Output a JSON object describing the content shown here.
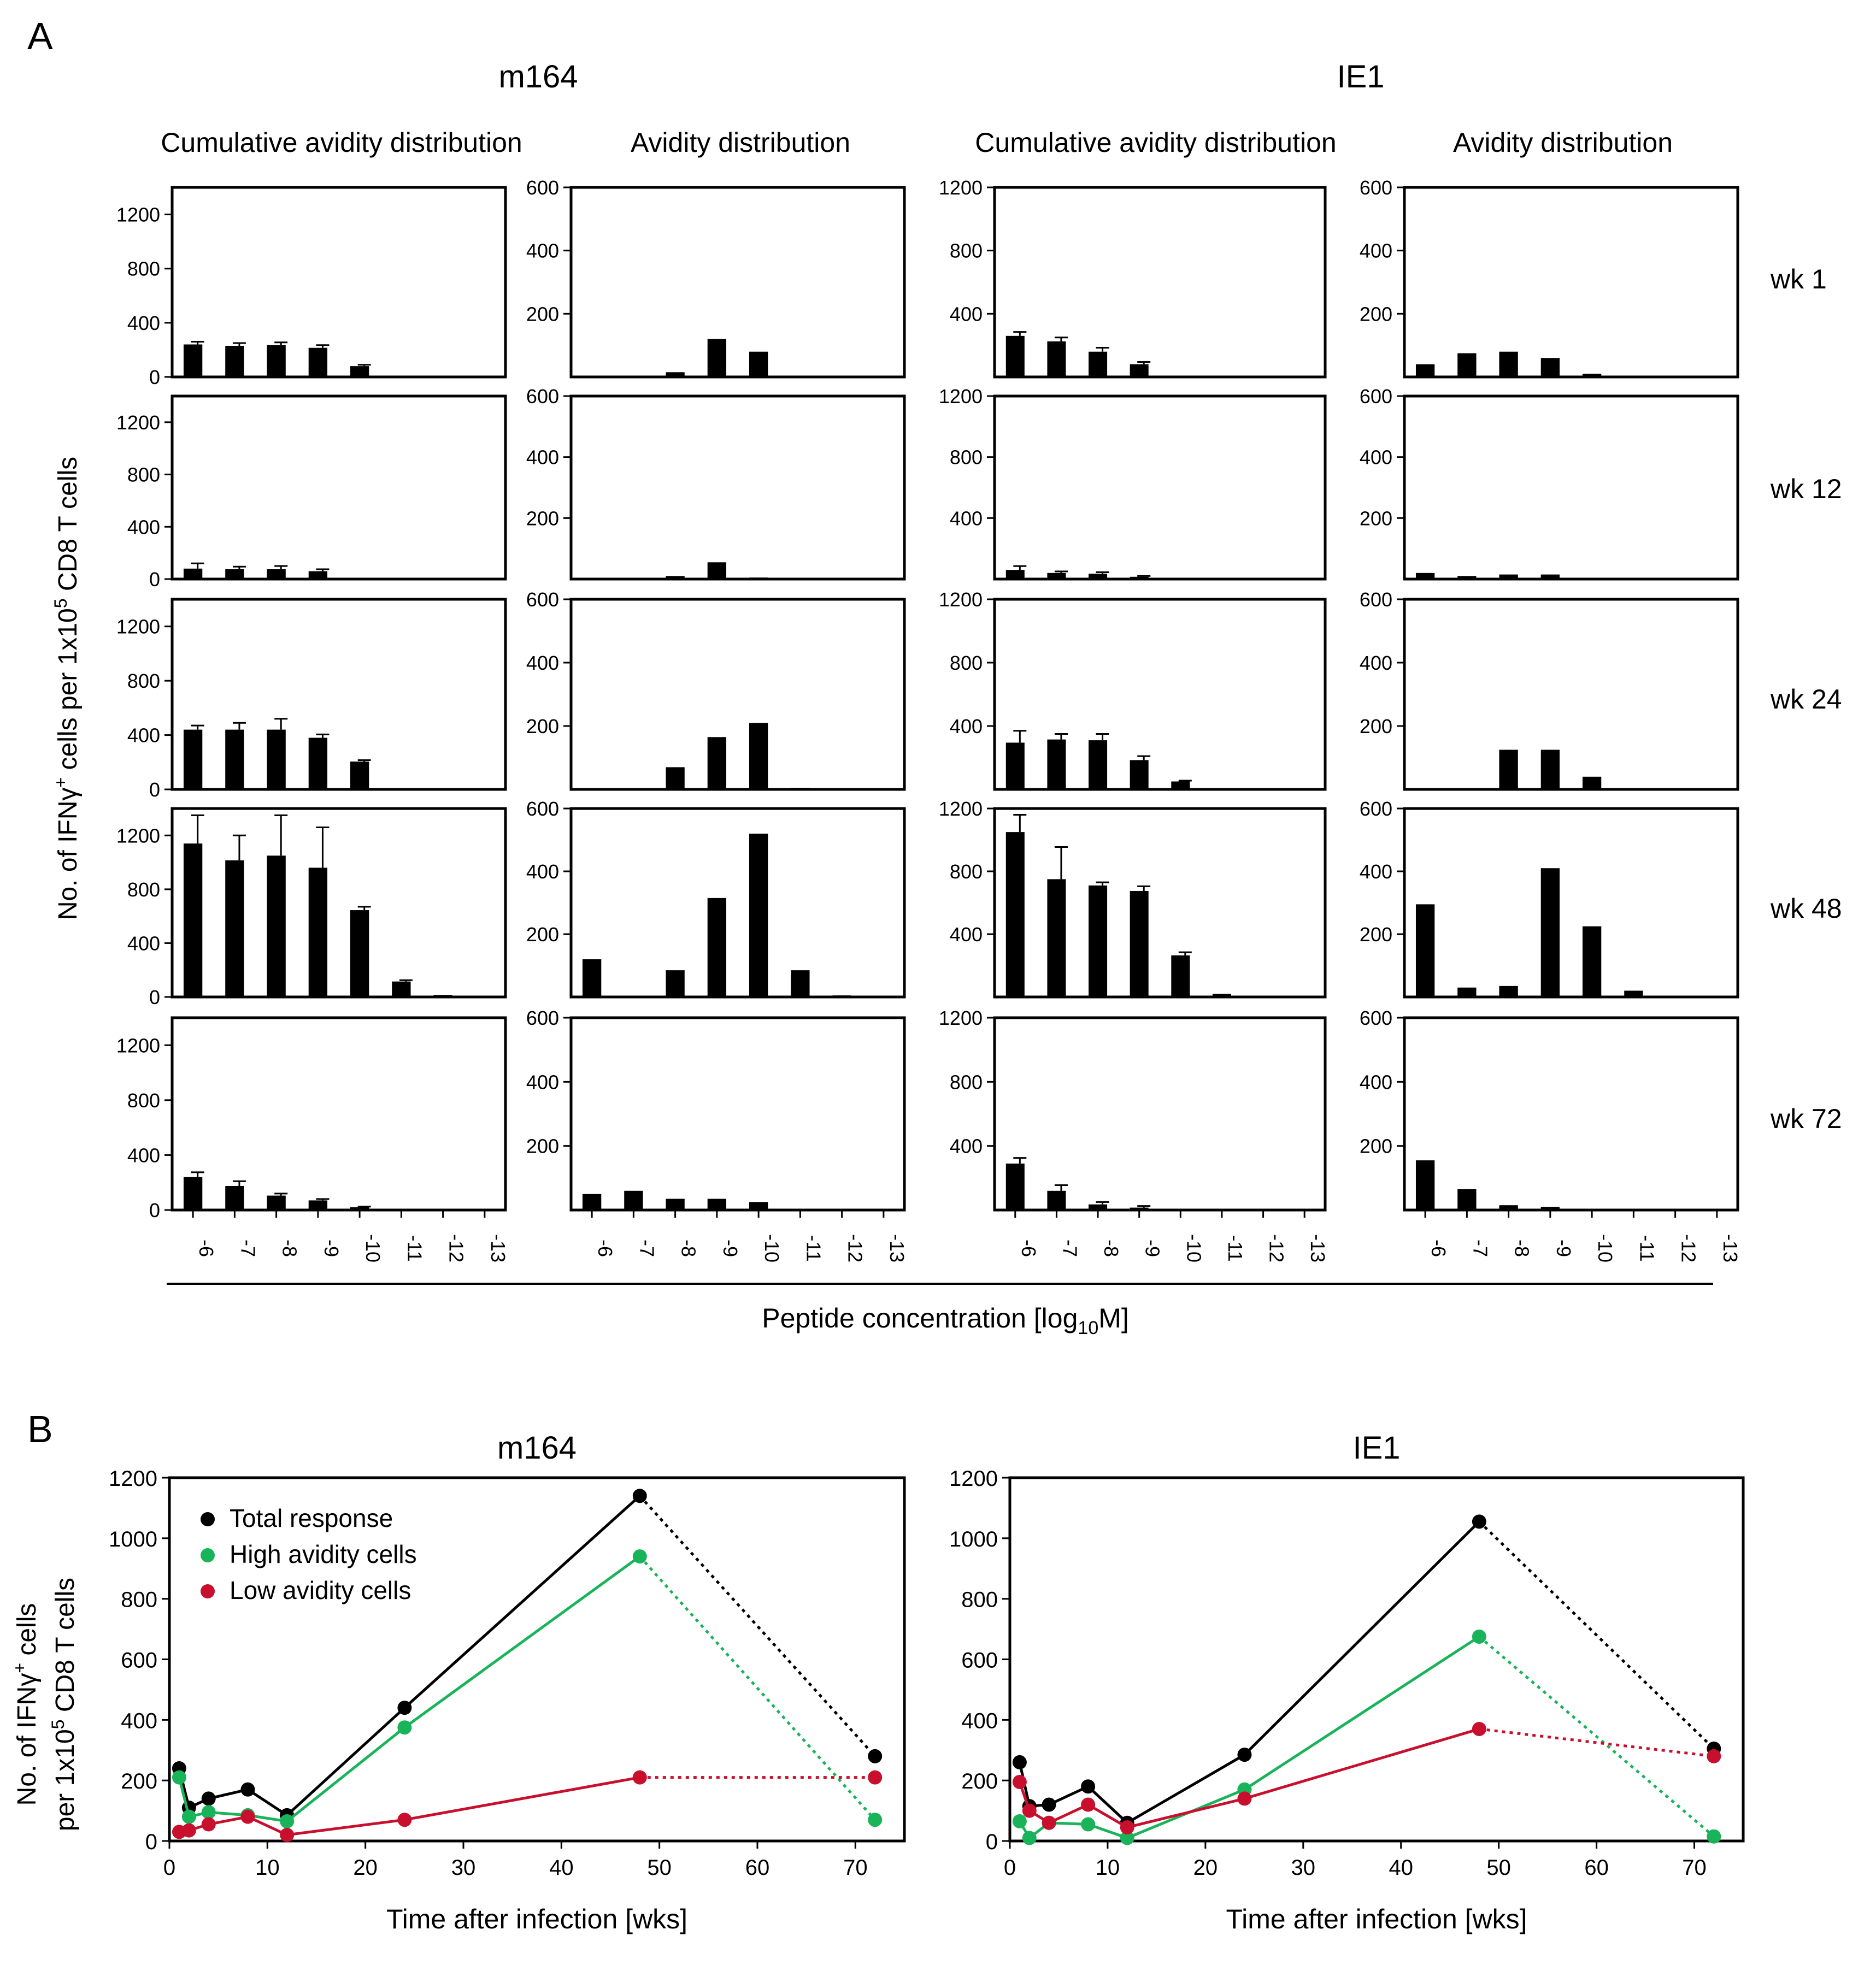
{
  "panel_labels": {
    "a": "A",
    "b": "B"
  },
  "headers": {
    "m164": "m164",
    "ie1": "IE1",
    "cumulative": "Cumulative avidity distribution",
    "avidity": "Avidity distribution"
  },
  "week_labels": [
    "wk 1",
    "wk 12",
    "wk 24",
    "wk 48",
    "wk 72"
  ],
  "ylabel_a_prefix": "No. of IFNγ",
  "ylabel_a_sup1": "+",
  "ylabel_a_mid": " cells per 1x10",
  "ylabel_a_sup2": "5",
  "ylabel_a_suffix": " CD8 T cells",
  "xlabel_a_prefix": "Peptide concentration [log",
  "xlabel_a_sub": "10",
  "xlabel_a_suffix": "M]",
  "ylabel_b1_prefix": "No. of IFNγ",
  "ylabel_b1_sup": "+",
  "ylabel_b1_suffix": " cells",
  "ylabel_b2_prefix": "per 1x10",
  "ylabel_b2_sup": "5",
  "ylabel_b2_suffix": " CD8 T cells",
  "chart_data": [
    {
      "panel": "A",
      "antigen": "m164",
      "type": "bar",
      "kind": "cumulative",
      "title": "Cumulative avidity distribution",
      "categories": [
        "-6",
        "-7",
        "-8",
        "-9",
        "-10",
        "-11",
        "-12",
        "-13"
      ],
      "ylim": [
        0,
        1400
      ],
      "yticks": [
        0,
        400,
        800,
        1200
      ],
      "xlabel": "Peptide concentration [log10M]",
      "ylabel": "No. of IFNγ+ cells per 1x10^5 CD8 T cells",
      "series": [
        {
          "name": "wk 1",
          "values": [
            240,
            230,
            235,
            215,
            80,
            0,
            0,
            0
          ],
          "errors": [
            20,
            20,
            20,
            20,
            10,
            0,
            0,
            0
          ]
        },
        {
          "name": "wk 12",
          "values": [
            80,
            75,
            75,
            60,
            5,
            0,
            0,
            0
          ],
          "errors": [
            40,
            20,
            25,
            15,
            0,
            0,
            0,
            0
          ]
        },
        {
          "name": "wk 24",
          "values": [
            440,
            440,
            440,
            380,
            205,
            0,
            0,
            0
          ],
          "errors": [
            30,
            50,
            80,
            25,
            10,
            0,
            0,
            0
          ]
        },
        {
          "name": "wk 48",
          "values": [
            1140,
            1015,
            1050,
            960,
            645,
            115,
            15,
            10
          ],
          "errors": [
            210,
            185,
            300,
            300,
            25,
            10,
            0,
            0
          ]
        },
        {
          "name": "wk 72",
          "values": [
            240,
            175,
            105,
            70,
            20,
            0,
            0,
            0
          ],
          "errors": [
            35,
            35,
            15,
            10,
            5,
            0,
            0,
            0
          ]
        }
      ]
    },
    {
      "panel": "A",
      "antigen": "m164",
      "type": "bar",
      "kind": "avidity",
      "title": "Avidity distribution",
      "categories": [
        "-6",
        "-7",
        "-8",
        "-9",
        "-10",
        "-11",
        "-12",
        "-13"
      ],
      "ylim": [
        0,
        600
      ],
      "yticks": [
        200,
        400,
        600
      ],
      "series": [
        {
          "name": "wk 1",
          "values": [
            0,
            0,
            15,
            120,
            80,
            0,
            0,
            0
          ]
        },
        {
          "name": "wk 12",
          "values": [
            0,
            0,
            10,
            55,
            5,
            0,
            0,
            0
          ]
        },
        {
          "name": "wk 24",
          "values": [
            0,
            0,
            70,
            165,
            210,
            5,
            0,
            0
          ]
        },
        {
          "name": "wk 48",
          "values": [
            120,
            0,
            85,
            315,
            520,
            85,
            5,
            0
          ]
        },
        {
          "name": "wk 72",
          "values": [
            50,
            60,
            35,
            35,
            25,
            0,
            0,
            0
          ]
        }
      ]
    },
    {
      "panel": "A",
      "antigen": "IE1",
      "type": "bar",
      "kind": "cumulative",
      "title": "Cumulative avidity distribution",
      "categories": [
        "-6",
        "-7",
        "-8",
        "-9",
        "-10",
        "-11",
        "-12",
        "-13"
      ],
      "ylim": [
        0,
        1200
      ],
      "yticks": [
        400,
        800,
        1200
      ],
      "series": [
        {
          "name": "wk 1",
          "values": [
            260,
            225,
            160,
            80,
            5,
            0,
            0,
            0
          ],
          "errors": [
            25,
            25,
            25,
            15,
            0,
            0,
            0,
            0
          ]
        },
        {
          "name": "wk 12",
          "values": [
            60,
            40,
            35,
            15,
            5,
            0,
            0,
            0
          ],
          "errors": [
            25,
            10,
            10,
            5,
            0,
            0,
            0,
            0
          ]
        },
        {
          "name": "wk 24",
          "values": [
            295,
            315,
            310,
            185,
            50,
            0,
            0,
            0
          ],
          "errors": [
            75,
            35,
            40,
            25,
            5,
            0,
            0,
            0
          ]
        },
        {
          "name": "wk 48",
          "values": [
            1050,
            750,
            710,
            675,
            265,
            20,
            0,
            0
          ],
          "errors": [
            110,
            205,
            20,
            30,
            20,
            0,
            0,
            0
          ]
        },
        {
          "name": "wk 72",
          "values": [
            290,
            120,
            35,
            15,
            0,
            0,
            0,
            0
          ],
          "errors": [
            35,
            35,
            15,
            10,
            0,
            0,
            0,
            0
          ]
        }
      ]
    },
    {
      "panel": "A",
      "antigen": "IE1",
      "type": "bar",
      "kind": "avidity",
      "title": "Avidity distribution",
      "categories": [
        "-6",
        "-7",
        "-8",
        "-9",
        "-10",
        "-11",
        "-12",
        "-13"
      ],
      "ylim": [
        0,
        600
      ],
      "yticks": [
        200,
        400,
        600
      ],
      "series": [
        {
          "name": "wk 1",
          "values": [
            40,
            75,
            80,
            60,
            10,
            0,
            0,
            0
          ]
        },
        {
          "name": "wk 12",
          "values": [
            20,
            10,
            15,
            15,
            0,
            0,
            0,
            0
          ]
        },
        {
          "name": "wk 24",
          "values": [
            0,
            0,
            125,
            125,
            40,
            0,
            0,
            0
          ]
        },
        {
          "name": "wk 48",
          "values": [
            295,
            30,
            35,
            410,
            225,
            20,
            0,
            0
          ]
        },
        {
          "name": "wk 72",
          "values": [
            155,
            65,
            15,
            10,
            0,
            0,
            0,
            0
          ]
        }
      ]
    },
    {
      "panel": "B",
      "type": "line",
      "title": "m164",
      "xlabel": "Time after infection [wks]",
      "ylabel": "No. of IFNγ+ cells per 1x10^5 CD8 T cells",
      "xlim": [
        0,
        75
      ],
      "ylim": [
        0,
        1200
      ],
      "xticks": [
        0,
        10,
        20,
        30,
        40,
        50,
        60,
        70
      ],
      "yticks": [
        0,
        200,
        400,
        600,
        800,
        1000,
        1200
      ],
      "legend_position": "top-left",
      "series": [
        {
          "name": "Total response",
          "color": "#000000",
          "x": [
            1,
            2,
            4,
            8,
            12,
            24,
            48,
            72
          ],
          "y": [
            240,
            110,
            140,
            170,
            85,
            440,
            1140,
            280
          ]
        },
        {
          "name": "High avidity cells",
          "color": "#19b35a",
          "x": [
            1,
            2,
            4,
            8,
            12,
            24,
            48,
            72
          ],
          "y": [
            210,
            80,
            95,
            85,
            65,
            375,
            940,
            70
          ]
        },
        {
          "name": "Low avidity cells",
          "color": "#c8102e",
          "x": [
            1,
            2,
            4,
            8,
            12,
            24,
            48,
            72
          ],
          "y": [
            30,
            35,
            55,
            80,
            20,
            70,
            210,
            210
          ]
        }
      ],
      "dotted_from_x": 48
    },
    {
      "panel": "B",
      "type": "line",
      "title": "IE1",
      "xlabel": "Time after infection [wks]",
      "xlim": [
        0,
        75
      ],
      "ylim": [
        0,
        1200
      ],
      "xticks": [
        0,
        10,
        20,
        30,
        40,
        50,
        60,
        70
      ],
      "yticks": [
        0,
        200,
        400,
        600,
        800,
        1000,
        1200
      ],
      "series": [
        {
          "name": "Total response",
          "color": "#000000",
          "x": [
            1,
            2,
            4,
            8,
            12,
            24,
            48,
            72
          ],
          "y": [
            260,
            115,
            120,
            180,
            60,
            285,
            1055,
            305
          ]
        },
        {
          "name": "High avidity cells",
          "color": "#19b35a",
          "x": [
            1,
            2,
            4,
            8,
            12,
            24,
            48,
            72
          ],
          "y": [
            65,
            10,
            60,
            55,
            10,
            170,
            675,
            15
          ]
        },
        {
          "name": "Low avidity cells",
          "color": "#c8102e",
          "x": [
            1,
            2,
            4,
            8,
            12,
            24,
            48,
            72
          ],
          "y": [
            195,
            100,
            60,
            120,
            45,
            140,
            370,
            280
          ]
        }
      ],
      "dotted_from_x": 48
    }
  ]
}
